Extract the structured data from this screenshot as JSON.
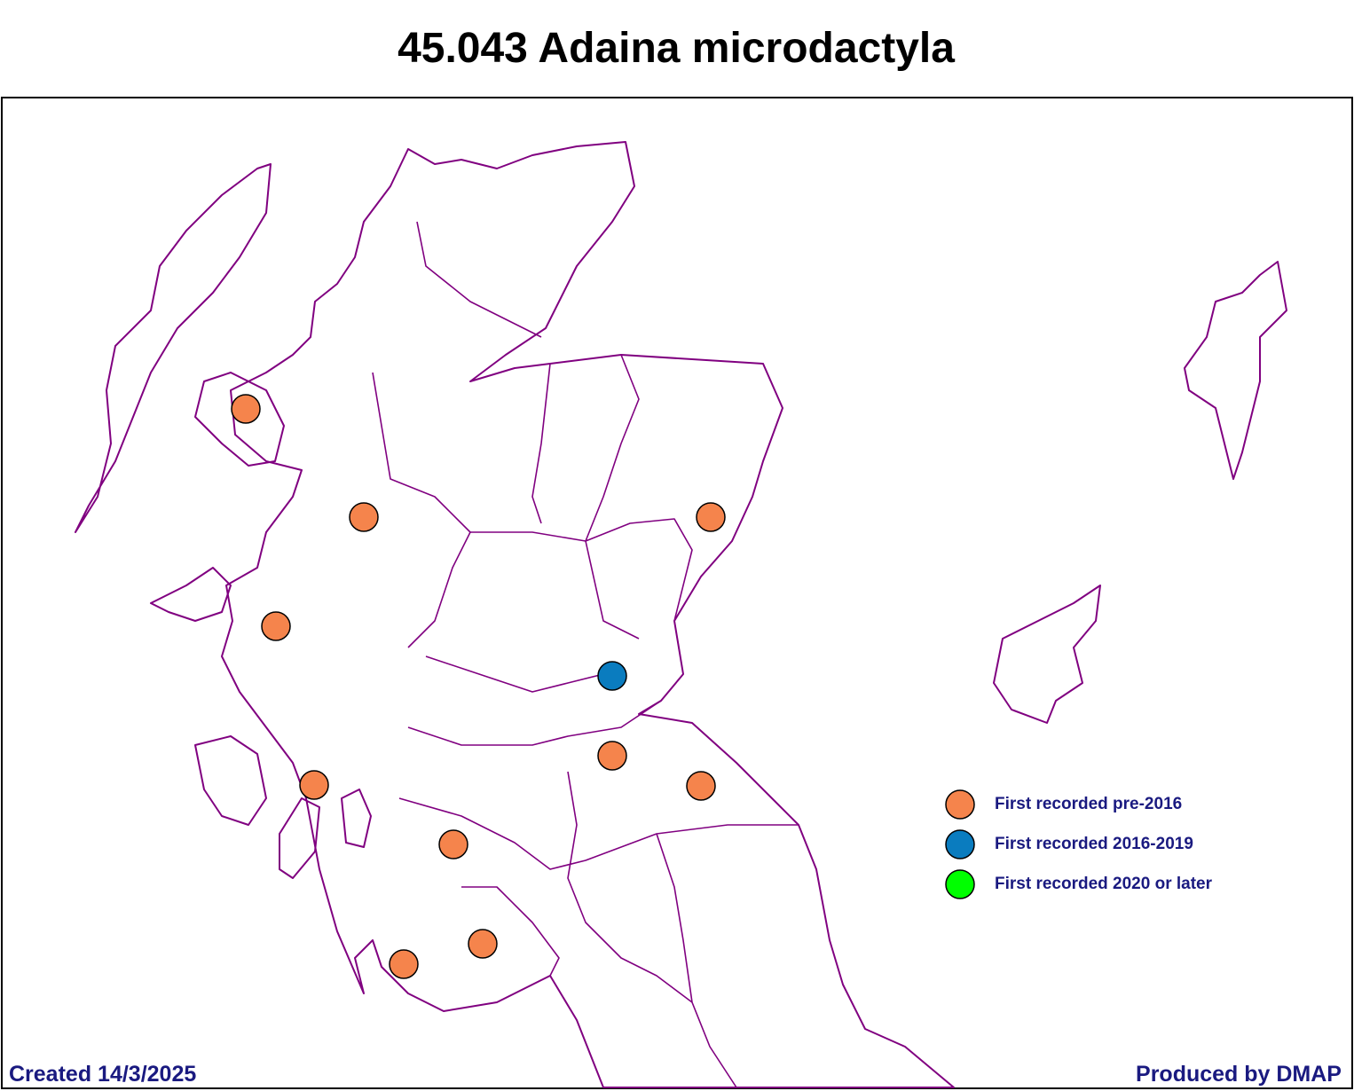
{
  "title": "45.043 Adaina microdactyla",
  "legend": [
    {
      "label": "First recorded pre-2016",
      "color": "#f5844c"
    },
    {
      "label": "First recorded 2016-2019",
      "color": "#0a7cbf"
    },
    {
      "label": "First recorded 2020 or later",
      "color": "#00ff00"
    }
  ],
  "footer": {
    "created": "Created 14/3/2025",
    "produced_by": "Produced by DMAP"
  }
}
